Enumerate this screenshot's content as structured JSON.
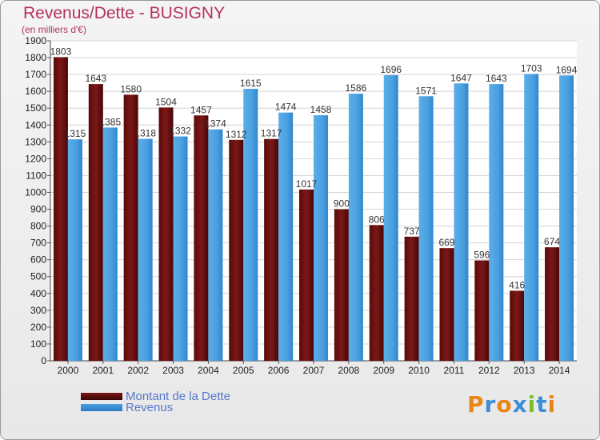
{
  "title": "Revenus/Dette - BUSIGNY",
  "subtitle": "(en milliers d'€)",
  "colors": {
    "dette": "#7b1818",
    "revenus": "#4a9fe0",
    "title": "#b5325b"
  },
  "legend": {
    "dette": "Montant de la Dette",
    "revenus": "Revenus"
  },
  "logo": "Proxiti",
  "chart_data": {
    "type": "bar",
    "title": "Revenus/Dette - BUSIGNY",
    "ylabel": "(en milliers d'€)",
    "xlabel": "",
    "ylim": [
      0,
      1900
    ],
    "yticks": [
      0,
      100,
      200,
      300,
      400,
      500,
      600,
      700,
      800,
      900,
      1000,
      1100,
      1200,
      1300,
      1400,
      1500,
      1600,
      1700,
      1800,
      1900
    ],
    "categories": [
      "2000",
      "2001",
      "2002",
      "2003",
      "2004",
      "2005",
      "2006",
      "2007",
      "2008",
      "2009",
      "2010",
      "2011",
      "2012",
      "2013",
      "2014"
    ],
    "series": [
      {
        "name": "Montant de la Dette",
        "values": [
          1803,
          1643,
          1580,
          1504,
          1457,
          1312,
          1317,
          1017,
          900,
          806,
          737,
          669,
          596,
          416,
          674
        ]
      },
      {
        "name": "Revenus",
        "values": [
          1315,
          1385,
          1318,
          1332,
          1374,
          1615,
          1474,
          1458,
          1586,
          1696,
          1571,
          1647,
          1643,
          1703,
          1694
        ]
      }
    ],
    "grid": true,
    "legend_position": "bottom-left"
  }
}
